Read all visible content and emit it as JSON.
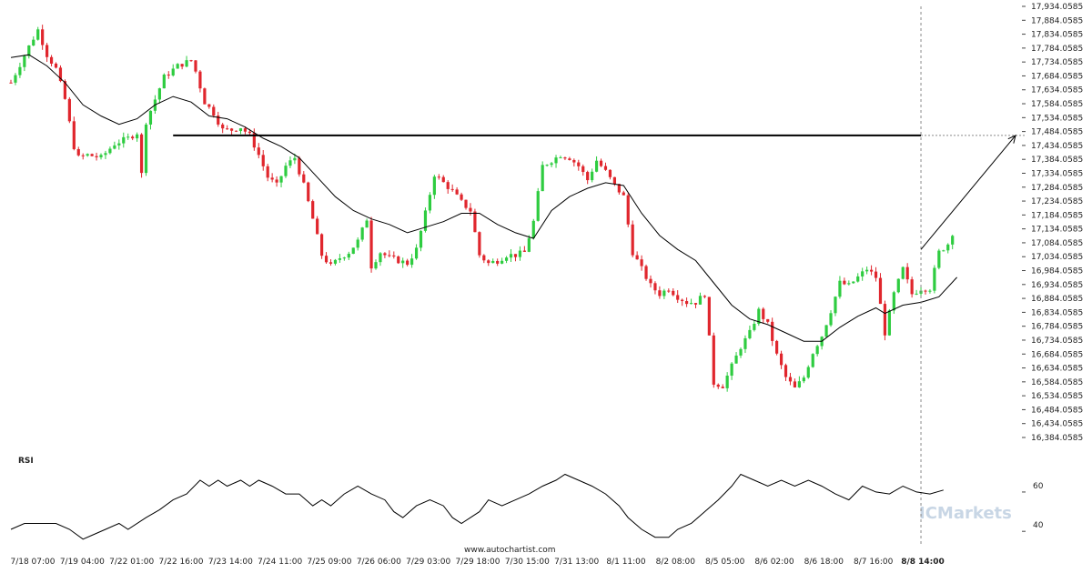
{
  "chart_data": [
    {
      "type": "candlestick",
      "title": "",
      "xlabel": "",
      "ylabel": "",
      "ylim": [
        16384.0585,
        17934.0585
      ],
      "yticks": [
        "17,934.0585",
        "17,884.0585",
        "17,834.0585",
        "17,784.0585",
        "17,734.0585",
        "17,684.0585",
        "17,634.0585",
        "17,584.0585",
        "17,534.0585",
        "17,484.0585",
        "17,434.0585",
        "17,384.0585",
        "17,334.0585",
        "17,284.0585",
        "17,234.0585",
        "17,184.0585",
        "17,134.0585",
        "17,084.0585",
        "17,034.0585",
        "16,984.0585",
        "16,934.0585",
        "16,884.0585",
        "16,834.0585",
        "16,784.0585",
        "16,734.0585",
        "16,684.0585",
        "16,634.0585",
        "16,584.0585",
        "16,534.0585",
        "16,484.0585",
        "16,434.0585",
        "16,384.0585"
      ],
      "xticks": [
        "7/18 07:00",
        "7/19 04:00",
        "7/22 01:00",
        "7/22 16:00",
        "7/23 14:00",
        "7/24 11:00",
        "7/25 09:00",
        "7/26 06:00",
        "7/29 03:00",
        "7/29 18:00",
        "7/30 15:00",
        "7/31 13:00",
        "8/1 11:00",
        "8/2 08:00",
        "8/5 05:00",
        "8/6 02:00",
        "8/6 18:00",
        "8/7 16:00",
        "8/8 14:00"
      ],
      "price_path": [
        [
          0,
          17660
        ],
        [
          4,
          17790
        ],
        [
          6,
          17850
        ],
        [
          8,
          17760
        ],
        [
          10,
          17710
        ],
        [
          12,
          17600
        ],
        [
          14,
          17430
        ],
        [
          15,
          17390
        ],
        [
          17,
          17400
        ],
        [
          20,
          17390
        ],
        [
          23,
          17440
        ],
        [
          26,
          17460
        ],
        [
          28,
          17480
        ],
        [
          29,
          17330
        ],
        [
          30,
          17520
        ],
        [
          32,
          17600
        ],
        [
          34,
          17680
        ],
        [
          37,
          17720
        ],
        [
          40,
          17740
        ],
        [
          41,
          17700
        ],
        [
          43,
          17590
        ],
        [
          45,
          17550
        ],
        [
          47,
          17490
        ],
        [
          49,
          17490
        ],
        [
          51,
          17500
        ],
        [
          53,
          17470
        ],
        [
          55,
          17400
        ],
        [
          57,
          17320
        ],
        [
          59,
          17290
        ],
        [
          61,
          17360
        ],
        [
          63,
          17390
        ],
        [
          65,
          17290
        ],
        [
          67,
          17170
        ],
        [
          69,
          17040
        ],
        [
          71,
          17000
        ],
        [
          73,
          17030
        ],
        [
          75,
          17050
        ],
        [
          77,
          17090
        ],
        [
          79,
          17170
        ],
        [
          80,
          17000
        ],
        [
          82,
          17050
        ],
        [
          84,
          17030
        ],
        [
          86,
          17020
        ],
        [
          88,
          17010
        ],
        [
          90,
          17060
        ],
        [
          92,
          17190
        ],
        [
          94,
          17330
        ],
        [
          96,
          17300
        ],
        [
          98,
          17270
        ],
        [
          100,
          17230
        ],
        [
          102,
          17200
        ],
        [
          104,
          17040
        ],
        [
          106,
          17010
        ],
        [
          108,
          17020
        ],
        [
          110,
          17040
        ],
        [
          112,
          17040
        ],
        [
          114,
          17050
        ],
        [
          116,
          17160
        ],
        [
          118,
          17360
        ],
        [
          120,
          17380
        ],
        [
          122,
          17400
        ],
        [
          124,
          17390
        ],
        [
          126,
          17360
        ],
        [
          128,
          17310
        ],
        [
          130,
          17380
        ],
        [
          132,
          17340
        ],
        [
          134,
          17290
        ],
        [
          136,
          17250
        ],
        [
          138,
          17050
        ],
        [
          140,
          16990
        ],
        [
          142,
          16930
        ],
        [
          144,
          16900
        ],
        [
          146,
          16920
        ],
        [
          148,
          16890
        ],
        [
          150,
          16870
        ],
        [
          152,
          16870
        ],
        [
          154,
          16900
        ],
        [
          156,
          16580
        ],
        [
          158,
          16570
        ],
        [
          160,
          16640
        ],
        [
          162,
          16710
        ],
        [
          164,
          16760
        ],
        [
          166,
          16840
        ],
        [
          168,
          16790
        ],
        [
          170,
          16680
        ],
        [
          172,
          16600
        ],
        [
          174,
          16560
        ],
        [
          176,
          16600
        ],
        [
          178,
          16690
        ],
        [
          180,
          16750
        ],
        [
          182,
          16840
        ],
        [
          184,
          16940
        ],
        [
          186,
          16930
        ],
        [
          188,
          16960
        ],
        [
          190,
          16990
        ],
        [
          192,
          16960
        ],
        [
          194,
          16760
        ],
        [
          196,
          16900
        ],
        [
          198,
          16990
        ],
        [
          200,
          16900
        ],
        [
          202,
          16920
        ],
        [
          204,
          16920
        ],
        [
          206,
          17050
        ],
        [
          208,
          17080
        ],
        [
          209,
          17120
        ]
      ],
      "moving_average": [
        [
          0,
          17750
        ],
        [
          4,
          17760
        ],
        [
          8,
          17720
        ],
        [
          12,
          17660
        ],
        [
          16,
          17580
        ],
        [
          20,
          17540
        ],
        [
          24,
          17510
        ],
        [
          28,
          17530
        ],
        [
          32,
          17580
        ],
        [
          36,
          17610
        ],
        [
          40,
          17590
        ],
        [
          44,
          17540
        ],
        [
          48,
          17530
        ],
        [
          52,
          17500
        ],
        [
          56,
          17460
        ],
        [
          60,
          17430
        ],
        [
          64,
          17390
        ],
        [
          68,
          17320
        ],
        [
          72,
          17250
        ],
        [
          76,
          17200
        ],
        [
          80,
          17170
        ],
        [
          84,
          17150
        ],
        [
          88,
          17120
        ],
        [
          92,
          17140
        ],
        [
          96,
          17160
        ],
        [
          100,
          17190
        ],
        [
          104,
          17190
        ],
        [
          108,
          17150
        ],
        [
          112,
          17120
        ],
        [
          116,
          17100
        ],
        [
          120,
          17200
        ],
        [
          124,
          17250
        ],
        [
          128,
          17280
        ],
        [
          132,
          17300
        ],
        [
          136,
          17290
        ],
        [
          140,
          17190
        ],
        [
          144,
          17110
        ],
        [
          148,
          17060
        ],
        [
          152,
          17020
        ],
        [
          156,
          16940
        ],
        [
          160,
          16860
        ],
        [
          164,
          16810
        ],
        [
          168,
          16790
        ],
        [
          172,
          16760
        ],
        [
          176,
          16730
        ],
        [
          180,
          16730
        ],
        [
          184,
          16780
        ],
        [
          188,
          16820
        ],
        [
          192,
          16850
        ],
        [
          194,
          16830
        ],
        [
          198,
          16860
        ],
        [
          202,
          16870
        ],
        [
          206,
          16890
        ],
        [
          210,
          16960
        ]
      ],
      "resistance_level": 17470,
      "projection": {
        "from": [
          202,
          17060
        ],
        "to": [
          223,
          17470
        ]
      }
    },
    {
      "type": "line",
      "title": "RSI",
      "ylim": [
        35,
        72
      ],
      "yticks": [
        "60",
        "40"
      ],
      "values": [
        [
          0,
          41
        ],
        [
          3,
          44
        ],
        [
          10,
          44
        ],
        [
          13,
          41
        ],
        [
          16,
          36
        ],
        [
          18,
          38
        ],
        [
          21,
          41
        ],
        [
          24,
          44
        ],
        [
          26,
          41
        ],
        [
          30,
          47
        ],
        [
          33,
          51
        ],
        [
          36,
          56
        ],
        [
          39,
          59
        ],
        [
          42,
          66
        ],
        [
          44,
          63
        ],
        [
          46,
          66
        ],
        [
          48,
          63
        ],
        [
          51,
          66
        ],
        [
          53,
          63
        ],
        [
          55,
          66
        ],
        [
          58,
          63
        ],
        [
          61,
          59
        ],
        [
          64,
          59
        ],
        [
          67,
          53
        ],
        [
          69,
          56
        ],
        [
          71,
          53
        ],
        [
          74,
          59
        ],
        [
          77,
          63
        ],
        [
          80,
          59
        ],
        [
          83,
          56
        ],
        [
          85,
          50
        ],
        [
          87,
          47
        ],
        [
          90,
          53
        ],
        [
          93,
          56
        ],
        [
          96,
          53
        ],
        [
          98,
          47
        ],
        [
          100,
          44
        ],
        [
          102,
          47
        ],
        [
          104,
          50
        ],
        [
          106,
          56
        ],
        [
          109,
          53
        ],
        [
          112,
          56
        ],
        [
          115,
          59
        ],
        [
          118,
          63
        ],
        [
          121,
          66
        ],
        [
          123,
          69
        ],
        [
          126,
          66
        ],
        [
          129,
          63
        ],
        [
          132,
          59
        ],
        [
          135,
          53
        ],
        [
          137,
          47
        ],
        [
          140,
          41
        ],
        [
          143,
          37
        ],
        [
          146,
          37
        ],
        [
          148,
          41
        ],
        [
          151,
          44
        ],
        [
          154,
          50
        ],
        [
          157,
          56
        ],
        [
          160,
          63
        ],
        [
          162,
          69
        ],
        [
          165,
          66
        ],
        [
          168,
          63
        ],
        [
          171,
          66
        ],
        [
          174,
          63
        ],
        [
          177,
          66
        ],
        [
          180,
          63
        ],
        [
          183,
          59
        ],
        [
          186,
          56
        ],
        [
          189,
          63
        ],
        [
          192,
          60
        ],
        [
          195,
          59
        ],
        [
          198,
          63
        ],
        [
          201,
          60
        ],
        [
          204,
          59
        ],
        [
          207,
          61
        ]
      ]
    }
  ],
  "footer": {
    "source": "www.autochartist.com"
  },
  "brand": {
    "name": "ICMarkets"
  },
  "rsi": {
    "label": "RSI",
    "ticks": [
      "60",
      "40"
    ]
  },
  "colors": {
    "bull": "#2ecc40",
    "bear": "#e0262d",
    "line": "#000000",
    "grid": "#cccccc",
    "resistance": "#000000"
  }
}
